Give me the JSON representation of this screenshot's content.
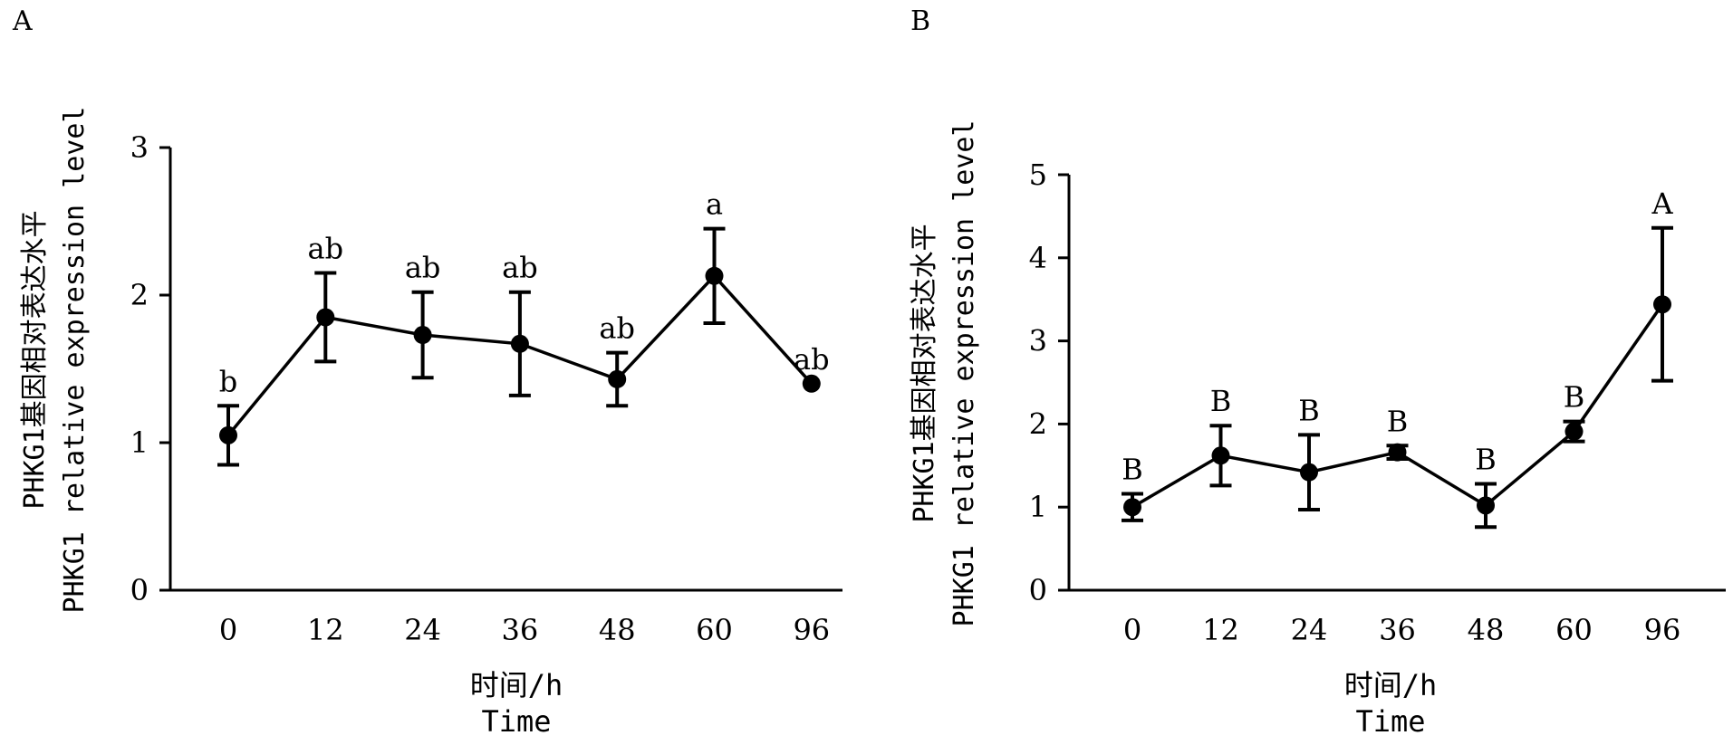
{
  "panels": [
    {
      "letter": "A"
    },
    {
      "letter": "B"
    }
  ],
  "chart_data": [
    {
      "type": "line",
      "panel": "A",
      "categories": [
        "0",
        "12",
        "24",
        "36",
        "48",
        "60",
        "96"
      ],
      "values": [
        1.05,
        1.85,
        1.73,
        1.67,
        1.43,
        2.13,
        1.4
      ],
      "error": [
        0.2,
        0.3,
        0.29,
        0.35,
        0.18,
        0.32,
        0.0
      ],
      "significance": [
        "b",
        "ab",
        "ab",
        "ab",
        "ab",
        "a",
        "ab"
      ],
      "ylim": [
        0,
        3
      ],
      "yticks": [
        "0",
        "1",
        "2",
        "3"
      ],
      "xlabel": [
        "时间/h",
        "Time"
      ],
      "ylabel": [
        "PHKG1基因相对表达水平",
        "PHKG1 relative expression level"
      ]
    },
    {
      "type": "line",
      "panel": "B",
      "categories": [
        "0",
        "12",
        "24",
        "36",
        "48",
        "60",
        "96"
      ],
      "values": [
        1.0,
        1.62,
        1.42,
        1.66,
        1.02,
        1.91,
        3.44
      ],
      "error": [
        0.16,
        0.36,
        0.45,
        0.08,
        0.26,
        0.12,
        0.92
      ],
      "significance": [
        "B",
        "B",
        "B",
        "B",
        "B",
        "B",
        "A"
      ],
      "ylim": [
        0,
        5
      ],
      "yticks": [
        "0",
        "1",
        "2",
        "3",
        "4",
        "5"
      ],
      "xlabel": [
        "时间/h",
        "Time"
      ],
      "ylabel": [
        "PHKG1基因相对表达水平",
        "PHKG1 relative expression level"
      ]
    }
  ]
}
